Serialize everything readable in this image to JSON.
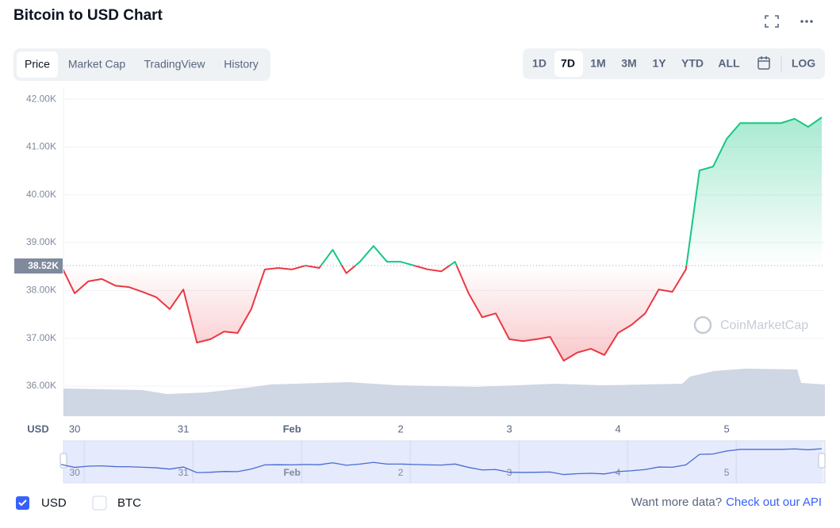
{
  "header": {
    "title": "Bitcoin to USD Chart"
  },
  "tabs": [
    "Price",
    "Market Cap",
    "TradingView",
    "History"
  ],
  "ranges": [
    "1D",
    "7D",
    "1M",
    "3M",
    "1Y",
    "YTD",
    "ALL",
    "LOG"
  ],
  "chart_data": {
    "type": "line",
    "xlabel": "USD",
    "categories": [
      null,
      "30",
      null,
      null,
      null,
      null,
      null,
      null,
      null,
      "31",
      null,
      null,
      null,
      null,
      null,
      null,
      null,
      "Feb",
      null,
      null,
      null,
      null,
      null,
      null,
      null,
      "2",
      null,
      null,
      null,
      null,
      null,
      null,
      null,
      "3",
      null,
      null,
      null,
      null,
      null,
      null,
      null,
      "4",
      null,
      null,
      null,
      null,
      null,
      null,
      null,
      "5",
      null,
      null,
      null,
      null,
      null,
      null,
      null
    ],
    "values": [
      38520,
      37940,
      38190,
      38240,
      38100,
      38070,
      37970,
      37860,
      37610,
      38020,
      36910,
      36980,
      37140,
      37110,
      37610,
      38440,
      38470,
      38440,
      38520,
      38470,
      38850,
      38360,
      38600,
      38930,
      38600,
      38600,
      38520,
      38440,
      38400,
      38600,
      37940,
      37440,
      37520,
      36980,
      36940,
      36980,
      37030,
      36530,
      36700,
      36780,
      36650,
      37110,
      37280,
      37520,
      38020,
      37970,
      38440,
      40510,
      40590,
      41170,
      41500,
      41500,
      41500,
      41500,
      41590,
      41420,
      41620
    ],
    "baseline": {
      "value": 38520,
      "label": "38.52K"
    },
    "color_above": "#16c784",
    "color_below": "#ea3943",
    "ylim": [
      35370,
      42250
    ],
    "yticks": [
      {
        "value": 36000,
        "label": "36.00K"
      },
      {
        "value": 37000,
        "label": "37.00K"
      },
      {
        "value": 38000,
        "label": "38.00K"
      },
      {
        "value": 39000,
        "label": "39.00K"
      },
      {
        "value": 40000,
        "label": "40.00K"
      },
      {
        "value": 41000,
        "label": "41.00K"
      },
      {
        "value": 42000,
        "label": "42.00K"
      }
    ],
    "grid": true,
    "watermark": "CoinMarketCap"
  },
  "footer": {
    "options": [
      "USD",
      "BTC"
    ],
    "prompt": "Want more data?",
    "link": "Check out our API"
  }
}
